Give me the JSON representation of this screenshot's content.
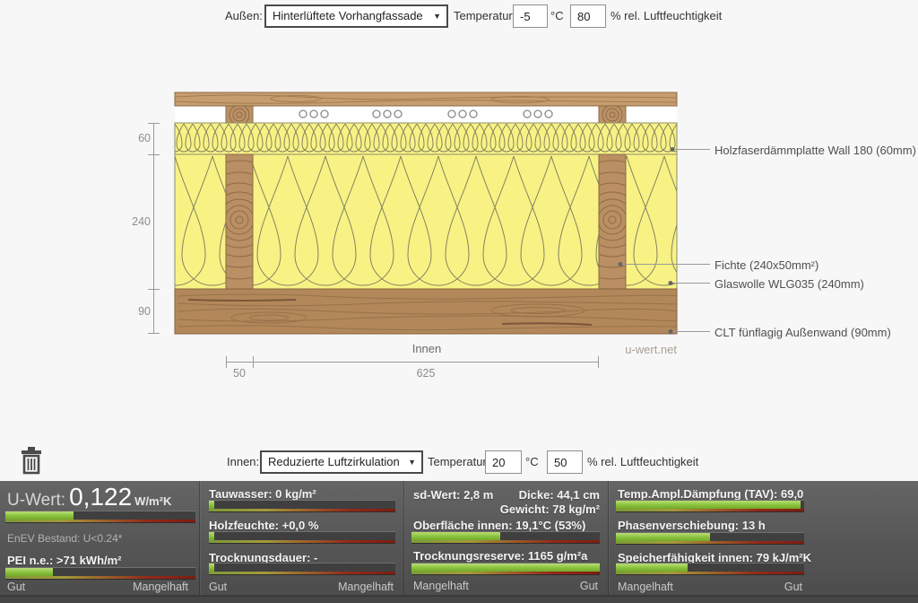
{
  "ui": {
    "dropdown_arrow": "▼"
  },
  "colors": {
    "accent_green": "#8dc63f",
    "bar_red": "#8c2318",
    "insulation_yellow": "#f8f285",
    "wood_brown": "#bb9166"
  },
  "outside": {
    "label": "Außen:",
    "material": "Hinterlüftete Vorhangfassade",
    "temperature_label": "Temperatur:",
    "temperature": "-5",
    "temperature_unit": "°C",
    "humidity": "80",
    "humidity_label": "% rel. Luftfeuchtigkeit"
  },
  "inside": {
    "label": "Innen:",
    "material": "Reduzierte Luftzirkulation",
    "temperature_label": "Temperatur:",
    "temperature": "20",
    "temperature_unit": "°C",
    "humidity": "50",
    "humidity_label": "% rel. Luftfeuchtigkeit"
  },
  "diagram": {
    "dim_left": [
      "60",
      "240",
      "90"
    ],
    "dim_bottom": [
      "50",
      "625"
    ],
    "inner_side_label": "Innen",
    "watermark": "u-wert.net",
    "labels": [
      "Holzfaserdämmplatte Wall 180 (60mm)",
      "Fichte (240x50mm²)",
      "Glaswolle WLG035 (240mm)",
      "CLT fünflagig Außenwand (90mm)"
    ]
  },
  "results": {
    "u": {
      "label": "U-Wert:",
      "value": "0,122",
      "unit": "W/m²K",
      "pct": 36,
      "note": "EnEV Bestand: U<0.24*",
      "pei_label": "PEI n.e.: >71 kWh/m²",
      "pei_pct": 25,
      "scale_left": "Gut",
      "scale_right": "Mangelhaft"
    },
    "moisture": {
      "rows": [
        {
          "label": "Tauwasser: 0 kg/m²",
          "pct": 3
        },
        {
          "label": "Holzfeuchte: +0,0 %",
          "pct": 3
        },
        {
          "label": "Trocknungsdauer: -",
          "pct": 3
        }
      ],
      "scale_left": "Gut",
      "scale_right": "Mangelhaft"
    },
    "surface": {
      "sd": "sd-Wert: 2,8 m",
      "thickness": "Dicke: 44,1 cm",
      "weight": "Gewicht: 78 kg/m²",
      "rows": [
        {
          "label": "Oberfläche innen: 19,1°C (53%)",
          "pct": 47
        },
        {
          "label": "Trocknungsreserve: 1165 g/m²a",
          "pct": 100
        }
      ],
      "scale_left": "Mangelhaft",
      "scale_right": "Gut"
    },
    "heat": {
      "rows": [
        {
          "label": "Temp.Ampl.Dämpfung (TAV): 69,0",
          "pct": 98
        },
        {
          "label": "Phasenverschiebung: 13 h",
          "pct": 50
        },
        {
          "label": "Speicherfähigkeit innen: 79 kJ/m²K",
          "pct": 38
        }
      ],
      "scale_left": "Mangelhaft",
      "scale_right": "Gut"
    }
  }
}
